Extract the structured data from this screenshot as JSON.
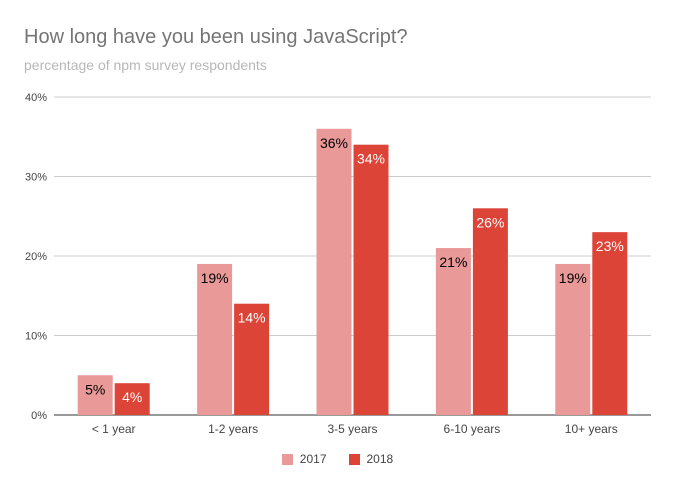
{
  "chart_data": {
    "type": "bar",
    "title": "How long have you been using JavaScript?",
    "subtitle": "percentage of npm survey respondents",
    "categories": [
      "< 1 year",
      "1-2 years",
      "3-5 years",
      "6-10 years",
      "10+ years"
    ],
    "series": [
      {
        "name": "2017",
        "color": "#ea9999",
        "values": [
          5,
          19,
          36,
          21,
          19
        ],
        "labels": [
          "5%",
          "19%",
          "36%",
          "21%",
          "19%"
        ],
        "label_color": "#000000"
      },
      {
        "name": "2018",
        "color": "#dc4437",
        "values": [
          4,
          14,
          34,
          26,
          23
        ],
        "labels": [
          "4%",
          "14%",
          "34%",
          "26%",
          "23%"
        ],
        "label_color": "#ffffff"
      }
    ],
    "y_ticks": [
      0,
      10,
      20,
      30,
      40
    ],
    "y_tick_labels": [
      "0%",
      "10%",
      "20%",
      "30%",
      "40%"
    ],
    "ylim": [
      0,
      40
    ],
    "grid": true,
    "legend_position": "bottom"
  }
}
